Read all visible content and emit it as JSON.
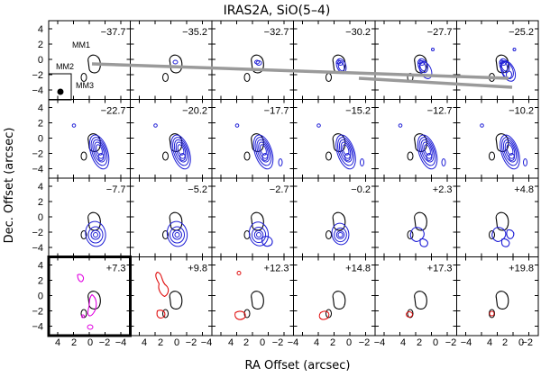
{
  "title": "IRAS2A, SiO(5–4)",
  "xlabel": "RA Offset (arcsec)",
  "ylabel": "Dec. Offset (arcsec)",
  "x_ticks": [
    "4",
    "2",
    "0",
    "−2",
    "−4"
  ],
  "y_ticks": [
    "4",
    "2",
    "0",
    "−2",
    "−4"
  ],
  "source_labels": [
    "MM1",
    "MM2",
    "MM3"
  ],
  "velocities": [
    [
      "−37.7",
      "−35.2",
      "−32.7",
      "−30.2",
      "−27.7",
      "−25.2"
    ],
    [
      "−22.7",
      "−20.2",
      "−17.7",
      "−15.2",
      "−12.7",
      "−10.2"
    ],
    [
      "−7.7",
      "−5.2",
      "−2.7",
      "−0.2",
      "+2.3",
      "+4.8"
    ],
    [
      "+7.3",
      "+9.8",
      "+12.3",
      "+14.8",
      "+17.3",
      "+19.8"
    ]
  ],
  "colors": {
    "continuum": "#000000",
    "blueshifted": "#1f1fd6",
    "systemic": "#e000e0",
    "redshifted": "#e01010",
    "outflow_axis": "#9a9a9a"
  }
}
